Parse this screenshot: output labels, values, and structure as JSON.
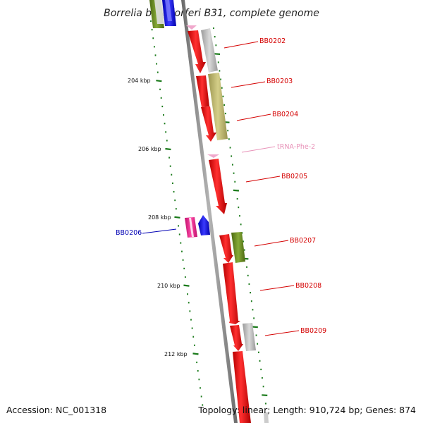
{
  "title": "Borrelia burgdorferi B31, complete genome",
  "footer": {
    "accession": "Accession: NC_001318",
    "summary": "Topology: linear; Length: 910,724 bp; Genes: 874"
  },
  "scale_labels": [
    "204 kbp",
    "206 kbp",
    "208 kbp",
    "210 kbp",
    "212 kbp"
  ],
  "gene_labels": [
    "BB0202",
    "BB0203",
    "BB0204",
    "tRNA-Phe-2",
    "BB0205",
    "BB0206",
    "BB0207",
    "BB0208",
    "BB0209"
  ],
  "colors": {
    "red": "#ff0000",
    "grey": "#b9b9b9",
    "khaki": "#bdb76b",
    "olive": "#6b8e23",
    "blue": "#0000ff",
    "magenta": "#ff1493",
    "pink": "#f0a8cc",
    "tick_green": "#1a7a1a",
    "label_red": "#d40000",
    "label_blue": "#0000b4",
    "backbone": "#808080"
  }
}
